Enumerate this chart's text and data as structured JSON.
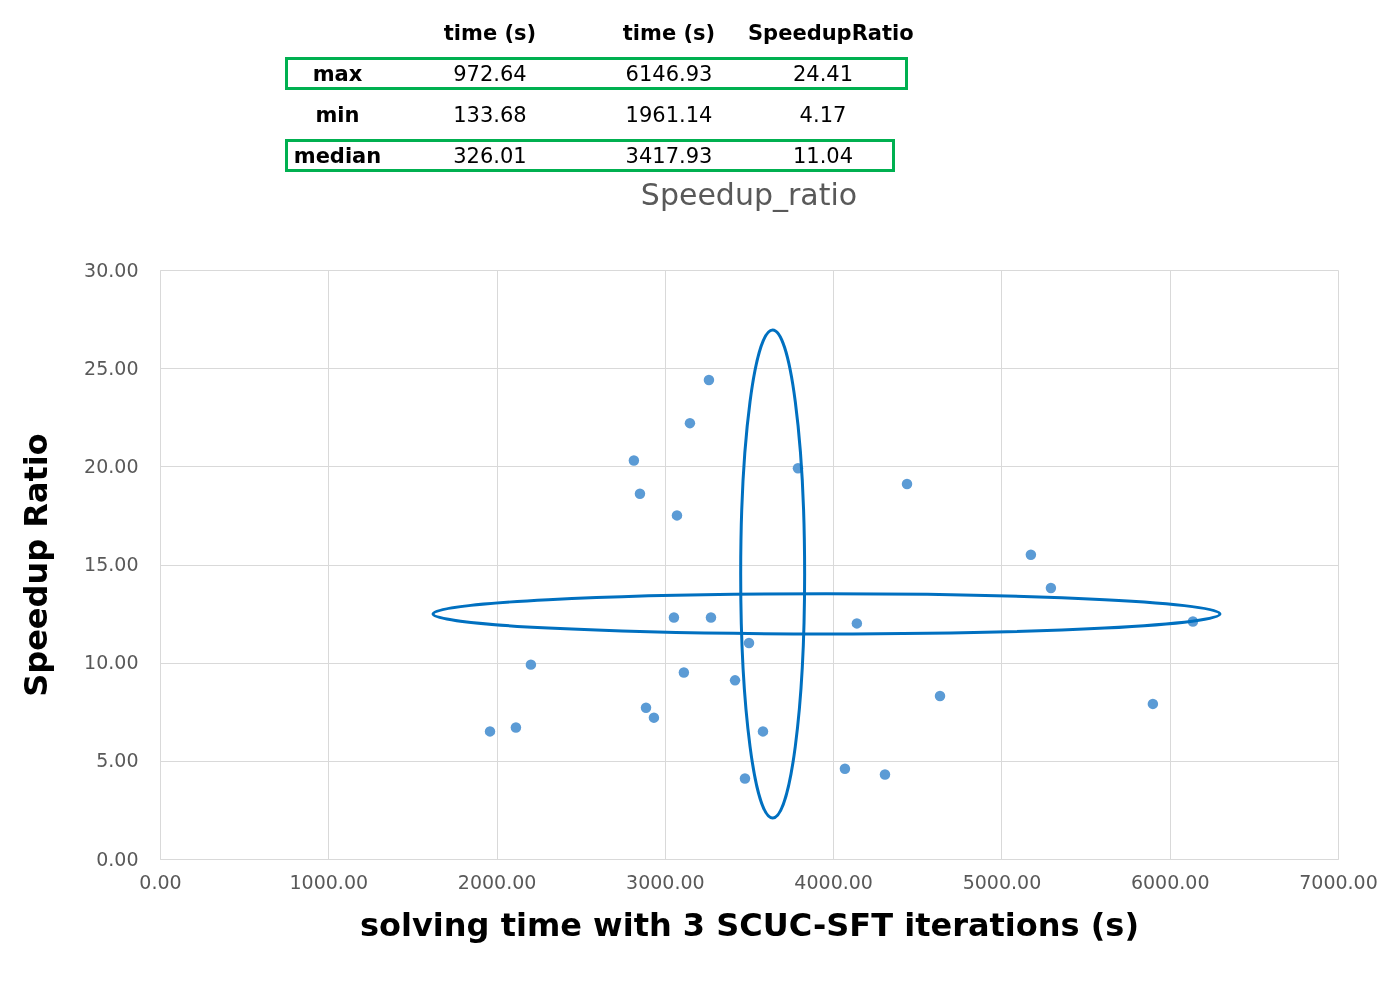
{
  "chart_data": {
    "type": "scatter",
    "title": "Speedup_ratio",
    "xlabel": "solving time with 3 SCUC-SFT iterations (s)",
    "ylabel": "Speedup Ratio",
    "annotations": [
      "time (s)",
      "time (s)",
      "SpeedupRatio",
      "max",
      "972.64",
      "6146.93",
      "24.41",
      "min",
      "133.68",
      "1961.14",
      "4.17",
      "median",
      "326.01",
      "3417.93",
      "11.04"
    ],
    "x": [
      1961,
      2115,
      2204,
      2816,
      2852,
      2888,
      2935,
      3054,
      3072,
      3113,
      3149,
      3262,
      3274,
      3417,
      3476,
      3500,
      3583,
      3791,
      4070,
      4141,
      4308,
      4439,
      4635,
      5175,
      5294,
      5900,
      6138
    ],
    "series": [
      {
        "color": "#5b9bd5",
        "values": [
          6.5,
          6.7,
          9.9,
          20.3,
          18.6,
          7.7,
          7.2,
          12.3,
          17.5,
          9.5,
          22.2,
          24.4,
          12.3,
          9.1,
          4.1,
          11.0,
          6.5,
          19.9,
          4.6,
          12.0,
          4.3,
          19.1,
          8.3,
          15.5,
          13.8,
          7.9,
          12.1
        ]
      }
    ],
    "xlim": [
      0,
      7000
    ],
    "xticks": [
      {
        "value": 0,
        "label": "0.00"
      },
      {
        "value": 1000,
        "label": "1000.00"
      },
      {
        "value": 2000,
        "label": "2000.00"
      },
      {
        "value": 3000,
        "label": "3000.00"
      },
      {
        "value": 4000,
        "label": "4000.00"
      },
      {
        "value": 5000,
        "label": "5000.00"
      },
      {
        "value": 6000,
        "label": "6000.00"
      },
      {
        "value": 7000,
        "label": "7000.00"
      }
    ],
    "ylim": [
      0,
      30
    ],
    "yticks": [
      {
        "value": 0,
        "label": "0.00"
      },
      {
        "value": 5,
        "label": "5.00"
      },
      {
        "value": 10,
        "label": "10.00"
      },
      {
        "value": 15,
        "label": "15.00"
      },
      {
        "value": 20,
        "label": "20.00"
      },
      {
        "value": 25,
        "label": "25.00"
      },
      {
        "value": 30,
        "label": "30.00"
      }
    ],
    "grid": true,
    "marker": "circle"
  }
}
